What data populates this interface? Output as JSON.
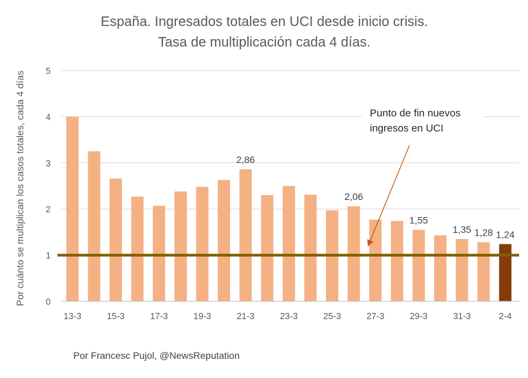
{
  "chart_data": {
    "type": "bar",
    "title": "España. Ingresados totales en UCI desde inicio crisis.",
    "subtitle": "Tasa de multiplicación cada 4 días.",
    "ylabel": "Por cuánto se multiplican los casos totales, cada 4 días",
    "xlabel": "",
    "ylim": [
      0,
      5
    ],
    "yticks": [
      0,
      1,
      2,
      3,
      4,
      5
    ],
    "grid": true,
    "categories": [
      "13-3",
      "14-3",
      "15-3",
      "16-3",
      "17-3",
      "18-3",
      "19-3",
      "20-3",
      "21-3",
      "22-3",
      "23-3",
      "24-3",
      "25-3",
      "26-3",
      "27-3",
      "28-3",
      "29-3",
      "30-3",
      "31-3",
      "1-4",
      "2-4"
    ],
    "xtick_labels": [
      "13-3",
      "15-3",
      "17-3",
      "19-3",
      "21-3",
      "23-3",
      "25-3",
      "27-3",
      "29-3",
      "31-3",
      "2-4"
    ],
    "values": [
      4.0,
      3.25,
      2.66,
      2.27,
      2.07,
      2.38,
      2.48,
      2.63,
      2.86,
      2.3,
      2.5,
      2.31,
      1.97,
      2.06,
      1.77,
      1.74,
      1.55,
      1.43,
      1.35,
      1.28,
      1.24
    ],
    "data_labels": [
      {
        "index": 8,
        "text": "2,86"
      },
      {
        "index": 13,
        "text": "2,06"
      },
      {
        "index": 16,
        "text": "1,55"
      },
      {
        "index": 18,
        "text": "1,35"
      },
      {
        "index": 19,
        "text": "1,28"
      },
      {
        "index": 20,
        "text": "1,24"
      }
    ],
    "colors": {
      "bar": "#F4B183",
      "highlight_bar": "#843C0C",
      "reference_line": "#7F6000",
      "grid": "#D9D9D9",
      "axis": "#BFBFBF"
    },
    "highlight_index": 20,
    "reference_line_value": 1,
    "annotation": {
      "lines": [
        "Punto de fin nuevos",
        "ingresos en UCI"
      ],
      "arrow_to_value": 1.25
    },
    "credit": "Por Francesc Pujol, @NewsReputation"
  }
}
